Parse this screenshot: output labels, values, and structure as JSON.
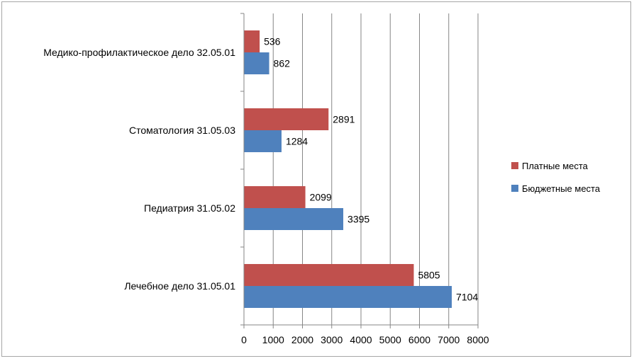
{
  "chart_data": {
    "type": "bar",
    "orientation": "horizontal",
    "title": "",
    "xlabel": "",
    "ylabel": "",
    "categories": [
      "Лечебное дело 31.05.01",
      "Педиатрия  31.05.02",
      "Стоматология 31.05.03",
      "Медико-профилактическое дело 32.05.01"
    ],
    "series": [
      {
        "name": "Бюджетные места",
        "color": "#4f81bd",
        "values": [
          7104,
          3395,
          1284,
          862
        ]
      },
      {
        "name": "Платные места",
        "color": "#c0504d",
        "values": [
          5805,
          2099,
          2891,
          536
        ]
      }
    ],
    "xlim": [
      0,
      8000
    ],
    "xticks": [
      0,
      1000,
      2000,
      3000,
      4000,
      5000,
      6000,
      7000,
      8000
    ],
    "grid": true,
    "legend_position": "right",
    "legend_order": [
      "Платные места",
      "Бюджетные места"
    ]
  }
}
